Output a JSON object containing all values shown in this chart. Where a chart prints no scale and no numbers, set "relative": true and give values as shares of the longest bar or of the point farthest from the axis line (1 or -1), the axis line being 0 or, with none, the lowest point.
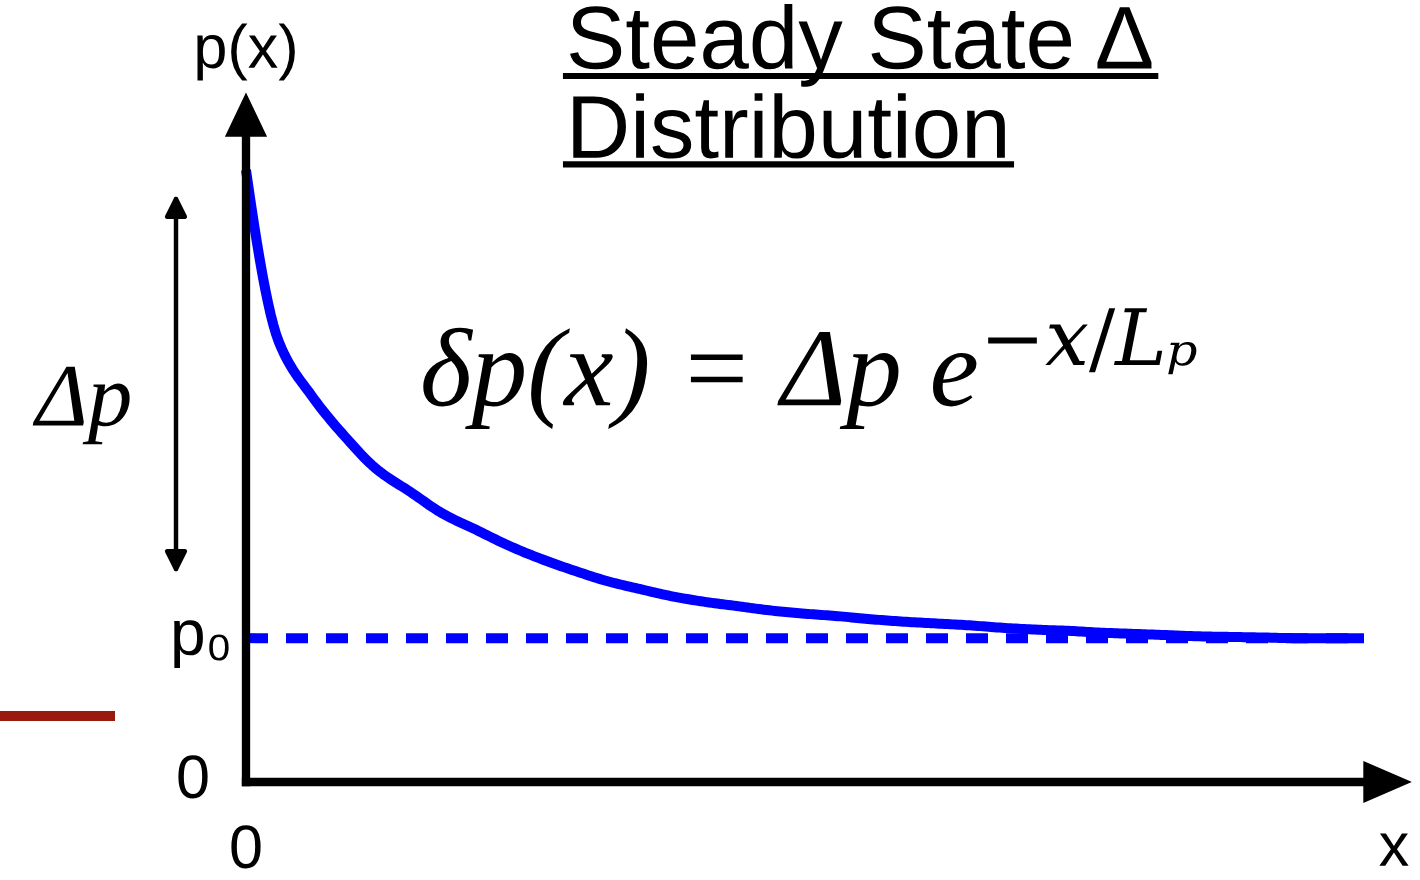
{
  "chart_data": {
    "type": "line",
    "title": "Steady State Δ\nDistribution",
    "xlabel": "x",
    "ylabel": "p(x)",
    "relative": true,
    "categories": [
      null,
      null,
      null,
      null,
      null,
      null,
      null,
      null,
      null,
      null,
      null,
      null,
      null,
      null,
      null,
      null,
      null,
      null,
      null,
      null,
      null,
      null,
      null,
      null,
      null,
      null,
      null,
      null,
      null,
      null,
      null,
      null,
      null,
      null,
      null
    ],
    "series": [
      {
        "color": "#0000ff",
        "values": [
          1.0,
          0.719,
          0.631,
          0.565,
          0.51,
          0.474,
          0.438,
          0.412,
          0.386,
          0.364,
          0.345,
          0.328,
          0.315,
          0.303,
          0.294,
          0.287,
          0.28,
          0.275,
          0.271,
          0.266,
          0.262,
          0.259,
          0.256,
          0.252,
          0.249,
          0.247,
          0.244,
          0.242,
          0.24,
          0.238,
          0.237,
          0.236,
          0.235,
          0.235,
          0.235
        ]
      }
    ],
    "ref_lines": [
      {
        "axis": "y",
        "value": 0.235,
        "label": "p₀",
        "color": "#0000ff",
        "line_style": "dashed"
      }
    ],
    "annotations": [
      "0",
      "Δp",
      "δp(x) = Δp e$^{−x/Lₚ}$",
      "0"
    ],
    "line_style": "solid"
  }
}
